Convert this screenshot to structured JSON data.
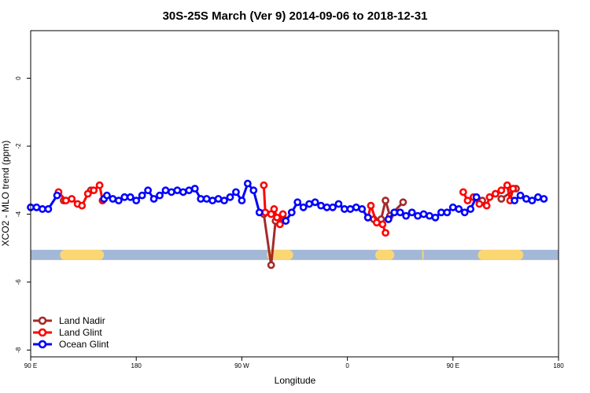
{
  "chart_data": {
    "type": "line",
    "title": "30S-25S March (Ver 9)   2014-09-06 to 2018-12-31",
    "xlabel": "Longitude",
    "ylabel": "XCO2 - MLO trend (ppm)",
    "xlim": [
      -90,
      270
    ],
    "ylim": [
      -8.2,
      1.4
    ],
    "x_ticks": [
      {
        "value": -90,
        "label": "90 E"
      },
      {
        "value": -18,
        "label": "180"
      },
      {
        "value": 54,
        "label": "90 W"
      },
      {
        "value": 126,
        "label": "0"
      },
      {
        "value": 198,
        "label": "90 E"
      },
      {
        "value": 270,
        "label": "180"
      }
    ],
    "y_ticks": [
      0,
      -2,
      -4,
      -6,
      -8
    ],
    "legend_position": "bottom-left",
    "series": [
      {
        "name": "Land Nadir",
        "color": "#a52a2a",
        "points": [
          [
            -67.5,
            -3.6
          ],
          [
            -49,
            -3.3
          ],
          [
            69,
            -4.0
          ],
          [
            74,
            -5.5
          ],
          [
            77,
            -4.2
          ],
          [
            82,
            -4.1
          ],
          [
            140,
            -4.1
          ],
          [
            144,
            -4.15
          ],
          [
            149,
            -4.15
          ],
          [
            152,
            -3.6
          ],
          [
            155,
            -4.05
          ],
          [
            164,
            -3.65
          ],
          [
            218,
            -3.6
          ],
          [
            231,
            -3.55
          ],
          [
            241,
            -3.25
          ]
        ]
      },
      {
        "name": "Land Glint",
        "color": "#ff0000",
        "points": [
          [
            -71,
            -3.35
          ],
          [
            -66,
            -3.6
          ],
          [
            -62,
            -3.55
          ],
          [
            -58,
            -3.7
          ],
          [
            -55,
            -3.75
          ],
          [
            -51,
            -3.4
          ],
          [
            -47,
            -3.3
          ],
          [
            -43,
            -3.15
          ],
          [
            -41,
            -3.6
          ],
          [
            69,
            -3.15
          ],
          [
            70,
            -3.95
          ],
          [
            74,
            -4.0
          ],
          [
            76,
            -3.85
          ],
          [
            78,
            -4.1
          ],
          [
            80,
            -4.3
          ],
          [
            82,
            -4.0
          ],
          [
            140,
            -4.1
          ],
          [
            142,
            -3.75
          ],
          [
            146,
            -4.25
          ],
          [
            150,
            -4.3
          ],
          [
            152,
            -4.55
          ],
          [
            205,
            -3.35
          ],
          [
            208,
            -3.6
          ],
          [
            212,
            -3.5
          ],
          [
            216,
            -3.7
          ],
          [
            221,
            -3.75
          ],
          [
            223,
            -3.5
          ],
          [
            227,
            -3.4
          ],
          [
            231,
            -3.3
          ],
          [
            235,
            -3.15
          ],
          [
            237,
            -3.6
          ],
          [
            239,
            -3.25
          ]
        ]
      },
      {
        "name": "Ocean Glint",
        "color": "#0000ff",
        "points": [
          [
            -90,
            -3.8
          ],
          [
            -86,
            -3.8
          ],
          [
            -82,
            -3.85
          ],
          [
            -78,
            -3.85
          ],
          [
            -72,
            -3.45
          ],
          [
            -40,
            -3.55
          ],
          [
            -38,
            -3.45
          ],
          [
            -34,
            -3.55
          ],
          [
            -30,
            -3.6
          ],
          [
            -26,
            -3.5
          ],
          [
            -22,
            -3.5
          ],
          [
            -18,
            -3.6
          ],
          [
            -14,
            -3.45
          ],
          [
            -10,
            -3.3
          ],
          [
            -6,
            -3.55
          ],
          [
            -2,
            -3.45
          ],
          [
            2,
            -3.3
          ],
          [
            6,
            -3.35
          ],
          [
            10,
            -3.3
          ],
          [
            14,
            -3.35
          ],
          [
            18,
            -3.3
          ],
          [
            22,
            -3.25
          ],
          [
            26,
            -3.55
          ],
          [
            30,
            -3.55
          ],
          [
            34,
            -3.6
          ],
          [
            38,
            -3.55
          ],
          [
            42,
            -3.6
          ],
          [
            46,
            -3.5
          ],
          [
            50,
            -3.35
          ],
          [
            54,
            -3.6
          ],
          [
            58,
            -3.1
          ],
          [
            62,
            -3.3
          ],
          [
            66,
            -3.95
          ],
          [
            84,
            -4.2
          ],
          [
            88,
            -3.95
          ],
          [
            92,
            -3.65
          ],
          [
            96,
            -3.8
          ],
          [
            100,
            -3.7
          ],
          [
            104,
            -3.65
          ],
          [
            108,
            -3.75
          ],
          [
            112,
            -3.8
          ],
          [
            116,
            -3.8
          ],
          [
            120,
            -3.7
          ],
          [
            124,
            -3.85
          ],
          [
            128,
            -3.85
          ],
          [
            132,
            -3.8
          ],
          [
            136,
            -3.85
          ],
          [
            140,
            -4.1
          ],
          [
            154,
            -4.15
          ],
          [
            158,
            -3.95
          ],
          [
            162,
            -3.95
          ],
          [
            166,
            -4.05
          ],
          [
            170,
            -3.95
          ],
          [
            174,
            -4.05
          ],
          [
            178,
            -4.0
          ],
          [
            182,
            -4.05
          ],
          [
            186,
            -4.1
          ],
          [
            190,
            -3.95
          ],
          [
            194,
            -3.95
          ],
          [
            198,
            -3.8
          ],
          [
            202,
            -3.85
          ],
          [
            206,
            -3.95
          ],
          [
            210,
            -3.85
          ],
          [
            214,
            -3.5
          ],
          [
            240,
            -3.6
          ],
          [
            244,
            -3.45
          ],
          [
            248,
            -3.55
          ],
          [
            252,
            -3.6
          ],
          [
            256,
            -3.5
          ],
          [
            260,
            -3.55
          ]
        ]
      }
    ],
    "land_mask_bands": [
      [
        -70,
        -40
      ],
      [
        71,
        89
      ],
      [
        145,
        158
      ],
      [
        177,
        178
      ],
      [
        215,
        246
      ]
    ],
    "colors": {
      "ocean_band": "#a3b8d6",
      "land_band": "#fbd773",
      "axis": "#000000"
    }
  }
}
